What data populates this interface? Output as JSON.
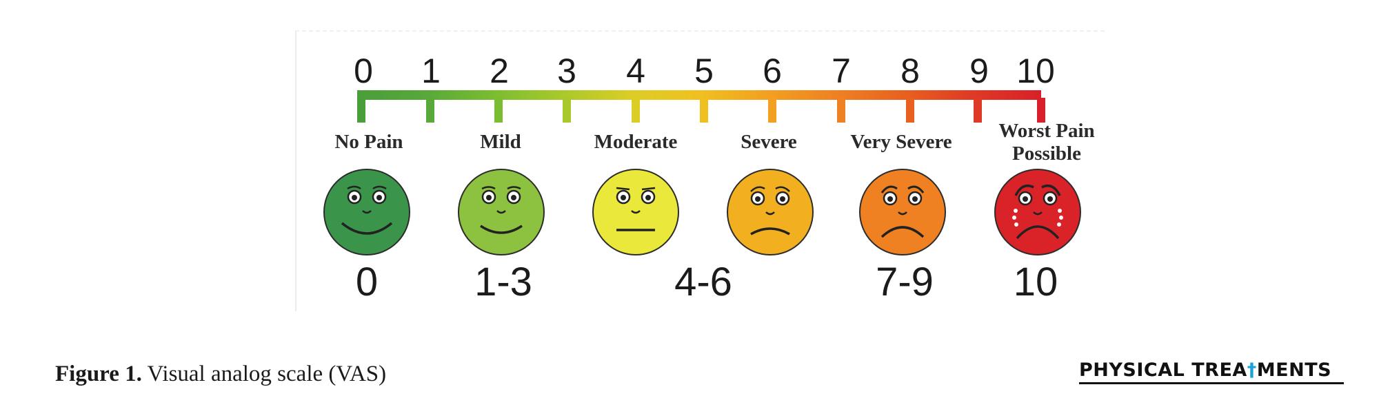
{
  "scale": {
    "ticks": [
      "0",
      "1",
      "2",
      "3",
      "4",
      "5",
      "6",
      "7",
      "8",
      "9",
      "10"
    ],
    "tick_colors": [
      "#4a9e3a",
      "#58a83a",
      "#7bbd31",
      "#a9c92b",
      "#dccd26",
      "#f0c020",
      "#f2a021",
      "#ee8122",
      "#e8611f",
      "#de3a25",
      "#d8202a"
    ]
  },
  "categories": [
    {
      "label": "No Pain",
      "face_color": "#3a944a",
      "expression": "big-smile",
      "range": "0"
    },
    {
      "label": "Mild",
      "face_color": "#8cc23f",
      "expression": "smile",
      "range": "1-3"
    },
    {
      "label": "Moderate",
      "face_color": "#eae83a",
      "expression": "neutral",
      "range": "4-6"
    },
    {
      "label": "Severe",
      "face_color": "#f2b021",
      "expression": "slight-frown",
      "range": ""
    },
    {
      "label": "Very Severe",
      "face_color": "#f08123",
      "expression": "frown",
      "range": "7-9"
    },
    {
      "label": "Worst Pain Possible",
      "label_line1": "Worst Pain",
      "label_line2": "Possible",
      "face_color": "#d92328",
      "expression": "crying",
      "range": "10"
    }
  ],
  "caption": {
    "label": "Figure 1.",
    "text": " Visual analog scale (VAS)"
  },
  "brand": {
    "part1": "PHYSICAL TREA",
    "cross": "†",
    "part2": "MENTS"
  }
}
